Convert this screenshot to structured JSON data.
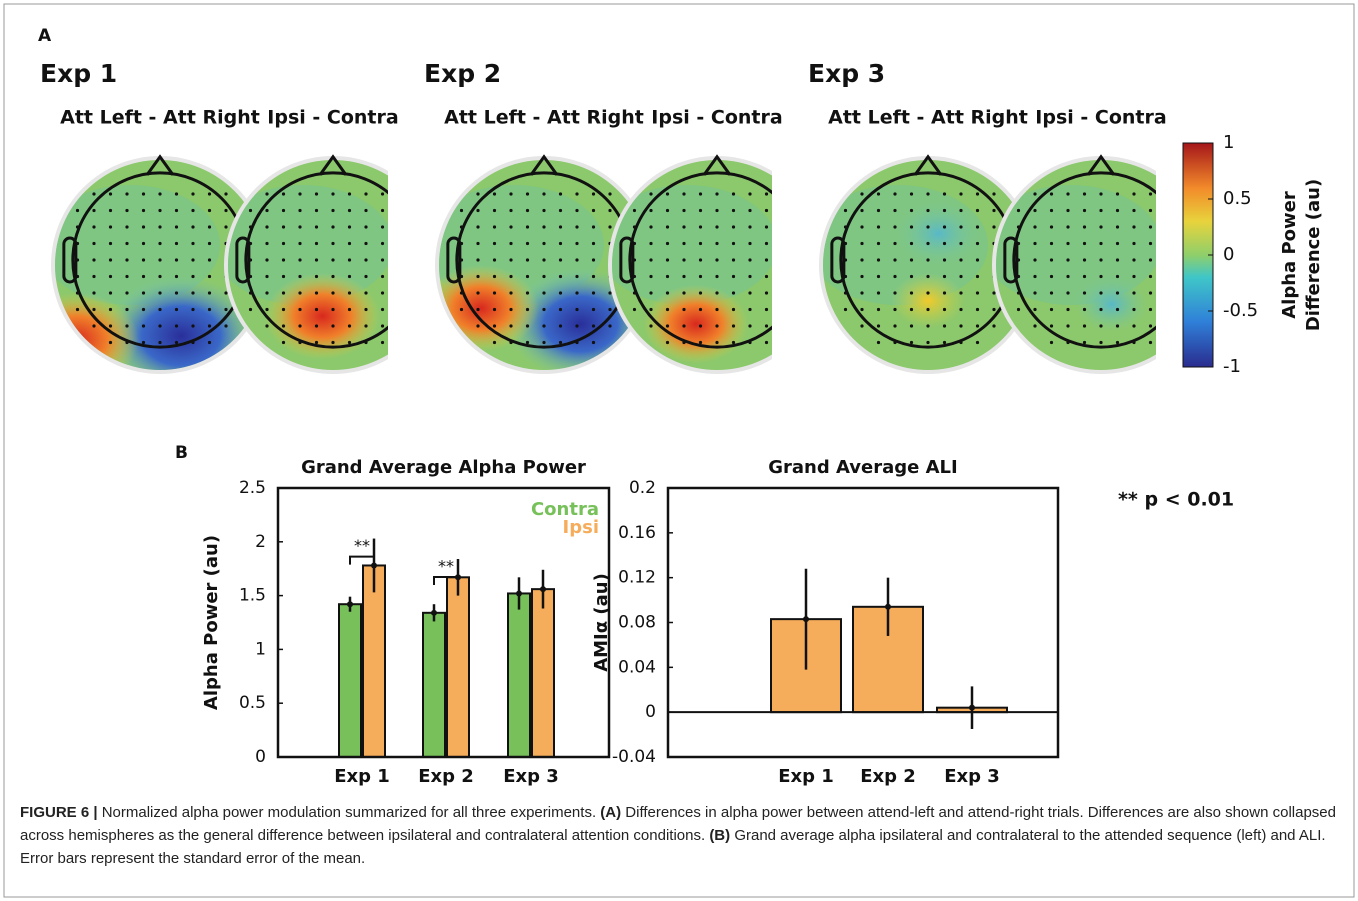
{
  "panel_a": {
    "label": "A",
    "experiments": [
      {
        "title": "Exp 1",
        "maps": [
          "Att Left - Att Right",
          "Ipsi - Contra"
        ]
      },
      {
        "title": "Exp 2",
        "maps": [
          "Att Left - Att Right",
          "Ipsi - Contra"
        ]
      },
      {
        "title": "Exp 3",
        "maps": [
          "Att Left - Att Right",
          "Ipsi - Contra"
        ]
      }
    ],
    "colorbar": {
      "label_lines": [
        "Alpha Power",
        "Difference  (au)"
      ],
      "lim": [
        -1,
        1
      ],
      "ticks": [
        1,
        0.5,
        0,
        -0.5,
        -1
      ]
    }
  },
  "panel_b": {
    "label": "B",
    "note": "** p < 0.01"
  },
  "chart_data": [
    {
      "type": "bar",
      "title": "Grand Average Alpha Power",
      "y_label": "Alpha Power (au)",
      "categories": [
        "Exp 1",
        "Exp 2",
        "Exp 3"
      ],
      "series": [
        {
          "name": "Contra",
          "color": "#77c05a",
          "values": [
            1.42,
            1.34,
            1.52
          ],
          "errors": [
            0.07,
            0.08,
            0.15
          ]
        },
        {
          "name": "Ipsi",
          "color": "#f6ad5b",
          "values": [
            1.78,
            1.67,
            1.56
          ],
          "errors": [
            0.25,
            0.17,
            0.18
          ]
        }
      ],
      "significance": [
        "**",
        "**",
        null
      ],
      "ylim": [
        0,
        2.5
      ],
      "yticks": [
        0,
        0.5,
        1,
        1.5,
        2,
        2.5
      ]
    },
    {
      "type": "bar",
      "title": "Grand Average ALI",
      "y_label": "AMIα (au)",
      "categories": [
        "Exp 1",
        "Exp 2",
        "Exp 3"
      ],
      "values": [
        0.083,
        0.094,
        0.004
      ],
      "errors": [
        0.045,
        0.026,
        0.019
      ],
      "color": "#f6ad5b",
      "ylim": [
        -0.04,
        0.2
      ],
      "yticks": [
        -0.04,
        0,
        0.04,
        0.08,
        0.12,
        0.16,
        0.2
      ]
    }
  ],
  "caption": [
    "FIGURE 6 |",
    "Normalized alpha power modulation summarized for all three experiments.",
    "(A)",
    "Differences in alpha power between attend-left and attend-right trials. Differences are also shown collapsed across hemispheres as the general difference between ipsilateral and contralateral attention conditions.",
    "(B)",
    "Grand average alpha ipsilateral and contralateral to the attended sequence (left) and ALI. Error bars represent the standard error of the mean."
  ]
}
